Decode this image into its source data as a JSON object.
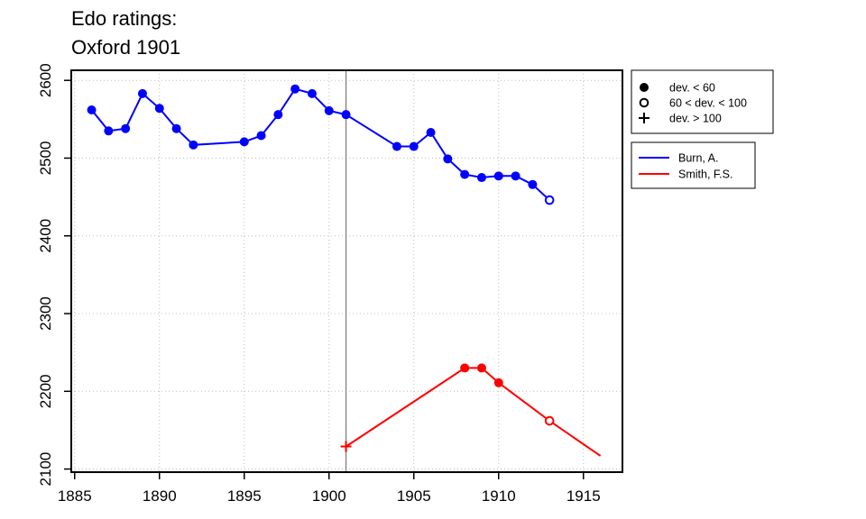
{
  "chart_data": {
    "type": "line",
    "title_lines": [
      "Edo ratings:",
      "Oxford 1901"
    ],
    "xlabel": "",
    "ylabel": "",
    "xlim": [
      1884.8,
      1917.3
    ],
    "ylim": [
      2096,
      2613
    ],
    "xticks": [
      1885,
      1890,
      1895,
      1900,
      1905,
      1910,
      1915
    ],
    "yticks": [
      2100,
      2200,
      2300,
      2400,
      2500,
      2600
    ],
    "grid": true,
    "vline_x": 1901,
    "markers_legend": [
      {
        "symbol": "filled",
        "label": "dev. < 60"
      },
      {
        "symbol": "open",
        "label": "60 < dev. < 100"
      },
      {
        "symbol": "plus",
        "label": "dev. > 100"
      }
    ],
    "series": [
      {
        "name": "Burn, A.",
        "color": "#0000ff",
        "x": [
          1886,
          1887,
          1888,
          1889,
          1890,
          1891,
          1892,
          1895,
          1896,
          1897,
          1898,
          1899,
          1900,
          1901,
          1904,
          1905,
          1906,
          1907,
          1908,
          1909,
          1910,
          1911,
          1912,
          1913
        ],
        "y": [
          2562,
          2535,
          2538,
          2583,
          2564,
          2538,
          2517,
          2521,
          2529,
          2556,
          2589,
          2583,
          2561,
          2556,
          2515,
          2515,
          2533,
          2499,
          2479,
          2475,
          2477,
          2477,
          2466,
          2446
        ],
        "markers": [
          "filled",
          "filled",
          "filled",
          "filled",
          "filled",
          "filled",
          "filled",
          "filled",
          "filled",
          "filled",
          "filled",
          "filled",
          "filled",
          "filled",
          "filled",
          "filled",
          "filled",
          "filled",
          "filled",
          "filled",
          "filled",
          "filled",
          "filled",
          "open"
        ]
      },
      {
        "name": "Smith, F.S.",
        "color": "#ff0000",
        "x": [
          1901,
          1908,
          1909,
          1910,
          1913,
          1916
        ],
        "y": [
          2129,
          2230,
          2230,
          2211,
          2162,
          2117
        ],
        "markers": [
          "plus",
          "filled",
          "filled",
          "filled",
          "open",
          "none"
        ]
      }
    ]
  }
}
